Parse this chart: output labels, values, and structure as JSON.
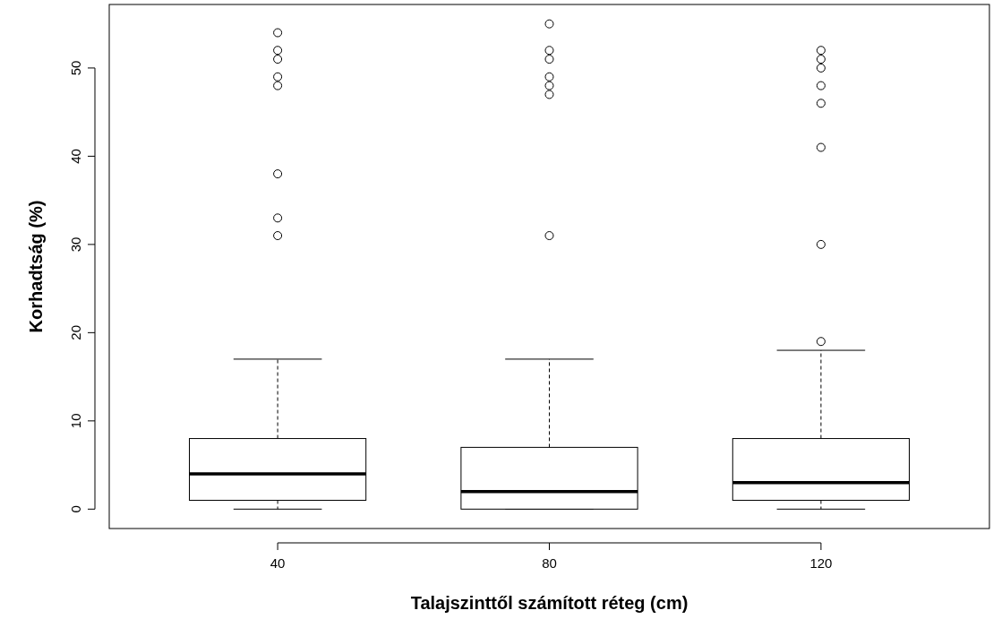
{
  "chart_data": {
    "type": "box",
    "xlabel": "Talajszinttől számított réteg (cm)",
    "ylabel": "Korhadtság (%)",
    "categories": [
      "40",
      "80",
      "120"
    ],
    "boxes": [
      {
        "low": 0,
        "q1": 1,
        "median": 4,
        "q3": 8,
        "high": 17,
        "outliers": [
          31,
          33,
          38,
          48,
          49,
          51,
          52,
          54
        ]
      },
      {
        "low": 0,
        "q1": 0,
        "median": 2,
        "q3": 7,
        "high": 17,
        "outliers": [
          31,
          47,
          48,
          49,
          51,
          52,
          55
        ]
      },
      {
        "low": 0,
        "q1": 1,
        "median": 3,
        "q3": 8,
        "high": 18,
        "outliers": [
          19,
          30,
          41,
          46,
          48,
          50,
          51,
          52
        ]
      }
    ],
    "ylim": [
      -2.2,
      57.2
    ],
    "yticks": [
      0,
      10,
      20,
      30,
      40,
      50
    ],
    "grid": false,
    "marker": "circle"
  }
}
